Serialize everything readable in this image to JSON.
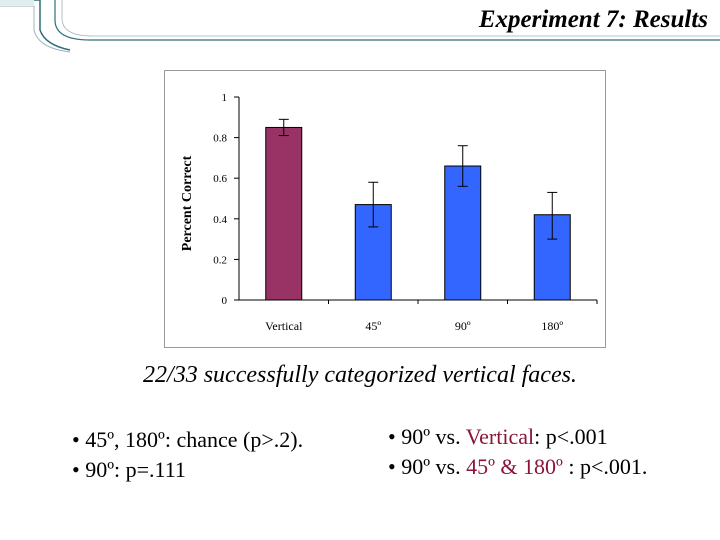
{
  "title": "Experiment 7: Results",
  "colors": {
    "bar_maroon": "#993366",
    "bar_blue": "#3366ff",
    "accent_text": "#8a1538",
    "deco_teal": "#2f6f77",
    "deco_light": "#9fb3bd"
  },
  "chart_data": {
    "type": "bar",
    "categories": [
      "Vertical",
      "45º",
      "90º",
      "180º"
    ],
    "values": [
      0.85,
      0.47,
      0.66,
      0.42
    ],
    "error_low": [
      0.81,
      0.36,
      0.56,
      0.3
    ],
    "error_high": [
      0.89,
      0.58,
      0.76,
      0.53
    ],
    "bar_colors": [
      "#993366",
      "#3366ff",
      "#3366ff",
      "#3366ff"
    ],
    "ylabel": "Percent Correct",
    "xlabel": "",
    "ylim": [
      0,
      1
    ],
    "yticks": [
      0,
      0.2,
      0.4,
      0.6,
      0.8,
      1
    ],
    "ytick_labels": [
      "0",
      "0.2",
      "0.4",
      "0.6",
      "0.8",
      "1"
    ],
    "grid": false,
    "legend": "none"
  },
  "caption": "22/33 successfully categorized vertical faces.",
  "bullets_left": [
    "• 45º, 180º: chance (p>.2).",
    "• 90º: p=.111"
  ],
  "bullets_right": [
    {
      "prefix": "• 90º vs. ",
      "accent": "Vertical",
      "suffix": ": p<.001"
    },
    {
      "prefix": "• 90º vs.  ",
      "accent": "45º & 180º",
      "suffix": " : p<.001."
    }
  ]
}
